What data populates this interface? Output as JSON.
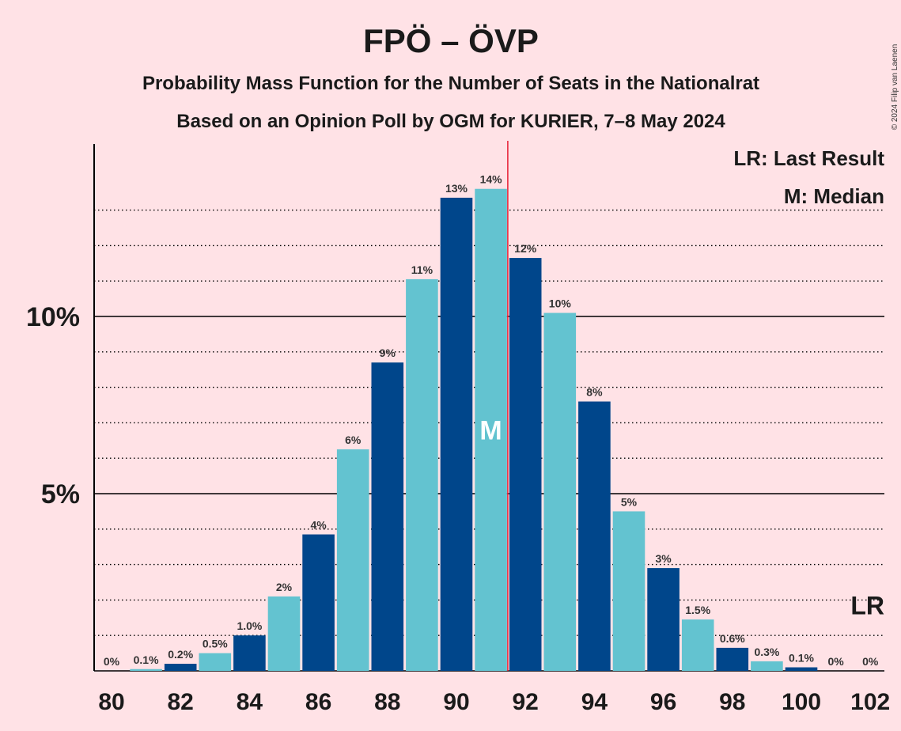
{
  "header": {
    "title": "FPÖ – ÖVP",
    "subtitle1": "Probability Mass Function for the Number of Seats in the Nationalrat",
    "subtitle2": "Based on an Opinion Poll by OGM for KURIER, 7–8 May 2024",
    "copyright": "© 2024 Filip van Laenen"
  },
  "legend": {
    "last_result": "LR: Last Result",
    "median": "M: Median"
  },
  "markers": {
    "lr_label": "LR",
    "median_label": "M",
    "median_seat": 91,
    "last_result_seat": 102
  },
  "colors": {
    "background": "#ffe2e6",
    "bar_dark": "#00468b",
    "bar_light": "#63c3d0",
    "median_line": "#e8283c",
    "axis": "#000000"
  },
  "chart_data": {
    "type": "bar",
    "xlim": [
      80,
      102
    ],
    "ylim": [
      0,
      14.8
    ],
    "x_ticks": [
      "80",
      "82",
      "84",
      "86",
      "88",
      "90",
      "92",
      "94",
      "96",
      "98",
      "100",
      "102"
    ],
    "y_ticks": [
      {
        "value": 5,
        "label": "5%"
      },
      {
        "value": 10,
        "label": "10%"
      }
    ],
    "y_dotted_gridlines": [
      1,
      2,
      3,
      4,
      6,
      7,
      8,
      9,
      11,
      12,
      13
    ],
    "seats": [
      80,
      81,
      82,
      83,
      84,
      85,
      86,
      87,
      88,
      89,
      90,
      91,
      92,
      93,
      94,
      95,
      96,
      97,
      98,
      99,
      100,
      101,
      102
    ],
    "values": [
      0,
      0.05,
      0.2,
      0.5,
      1.0,
      2.1,
      3.85,
      6.25,
      8.7,
      11.05,
      13.35,
      13.6,
      11.65,
      10.1,
      7.6,
      4.5,
      2.9,
      1.45,
      0.65,
      0.27,
      0.1,
      0,
      0
    ],
    "labels": [
      "0%",
      "0.1%",
      "0.2%",
      "0.5%",
      "1.0%",
      "2%",
      "4%",
      "6%",
      "9%",
      "11%",
      "13%",
      "14%",
      "12%",
      "10%",
      "8%",
      "5%",
      "3%",
      "1.5%",
      "0.6%",
      "0.3%",
      "0.1%",
      "0%",
      "0%"
    ]
  }
}
